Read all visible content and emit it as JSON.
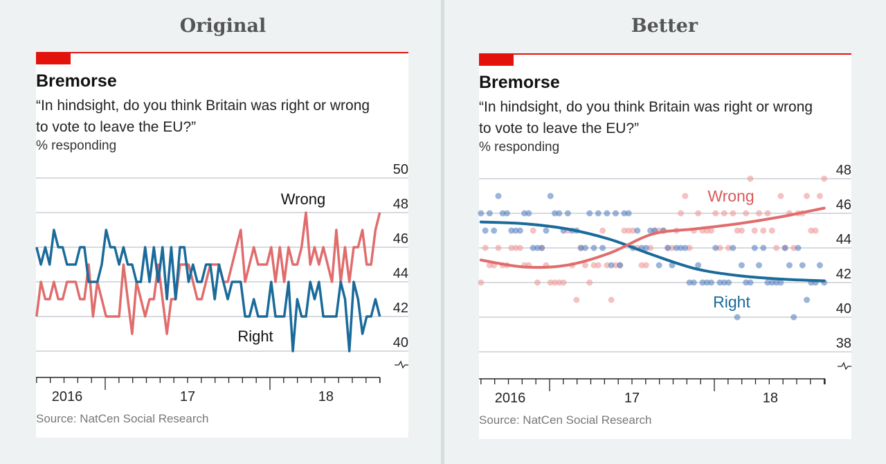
{
  "headers": {
    "left": "Original",
    "right": "Better"
  },
  "panel": {
    "title": "Bremorse",
    "subtitle_line1": "“In hindsight, do you think Britain was right or wrong",
    "subtitle_line2": "to vote to leave the EU?”",
    "unit": "% responding",
    "source": "Source: NatCen Social Research"
  },
  "colors": {
    "right": "#1a6a9a",
    "wrong": "#e06c6c",
    "tag": "#e3120b",
    "right_dot": "#5a82bf",
    "wrong_dot": "#ee9a9a"
  },
  "chart_data": [
    {
      "type": "line",
      "x_range": [
        "2016-08",
        "2018-09"
      ],
      "x_tick_labels": [
        "2016",
        "17",
        "18"
      ],
      "ylim": [
        40,
        50
      ],
      "y_ticks": [
        "40",
        "42",
        "44",
        "46",
        "48",
        "50"
      ],
      "grid": true,
      "series": [
        {
          "name": "Right",
          "values": [
            46,
            45,
            46,
            45,
            47,
            46,
            46,
            45,
            45,
            45,
            46,
            46,
            44,
            44,
            44,
            45,
            47,
            46,
            46,
            45,
            46,
            45,
            45,
            44,
            44,
            46,
            44,
            46,
            44,
            46,
            43,
            46,
            43,
            46,
            46,
            44,
            45,
            44,
            44,
            45,
            45,
            43,
            45,
            44,
            43,
            44,
            44,
            44,
            42,
            42,
            43,
            42,
            42,
            42,
            44,
            42,
            42,
            42,
            44,
            40,
            43,
            42,
            42,
            44,
            43,
            44,
            42,
            42,
            42,
            42,
            44,
            43,
            40,
            44,
            43,
            41,
            42,
            42,
            43,
            42
          ]
        },
        {
          "name": "Wrong",
          "values": [
            42,
            44,
            43,
            43,
            44,
            43,
            43,
            44,
            44,
            44,
            43,
            43,
            45,
            42,
            44,
            43,
            42,
            42,
            42,
            42,
            45,
            43,
            41,
            44,
            43,
            42,
            43,
            43,
            45,
            43,
            41,
            43,
            43,
            45,
            45,
            45,
            44,
            43,
            43,
            44,
            45,
            45,
            45,
            44,
            44,
            45,
            46,
            47,
            44,
            45,
            46,
            45,
            45,
            45,
            46,
            44,
            46,
            44,
            46,
            45,
            45,
            46,
            48,
            45,
            46,
            45,
            46,
            45,
            44,
            47,
            44,
            46,
            44,
            46,
            46,
            47,
            45,
            45,
            47,
            48
          ]
        }
      ]
    },
    {
      "type": "scatter",
      "x_range": [
        "2016-08",
        "2018-09"
      ],
      "x_tick_labels": [
        "2016",
        "17",
        "18"
      ],
      "ylim": [
        38,
        48
      ],
      "y_ticks": [
        "38",
        "40",
        "42",
        "44",
        "46",
        "48"
      ],
      "grid": true,
      "points_from": "same polls as Original",
      "trend": [
        {
          "name": "Right",
          "values": [
            45.5,
            45.4,
            45.1,
            44.5,
            43.6,
            42.8,
            42.4,
            42.2,
            42.1
          ]
        },
        {
          "name": "Wrong",
          "values": [
            43.3,
            42.9,
            43.0,
            43.7,
            44.8,
            45.1,
            45.4,
            45.8,
            46.3
          ]
        }
      ]
    }
  ]
}
